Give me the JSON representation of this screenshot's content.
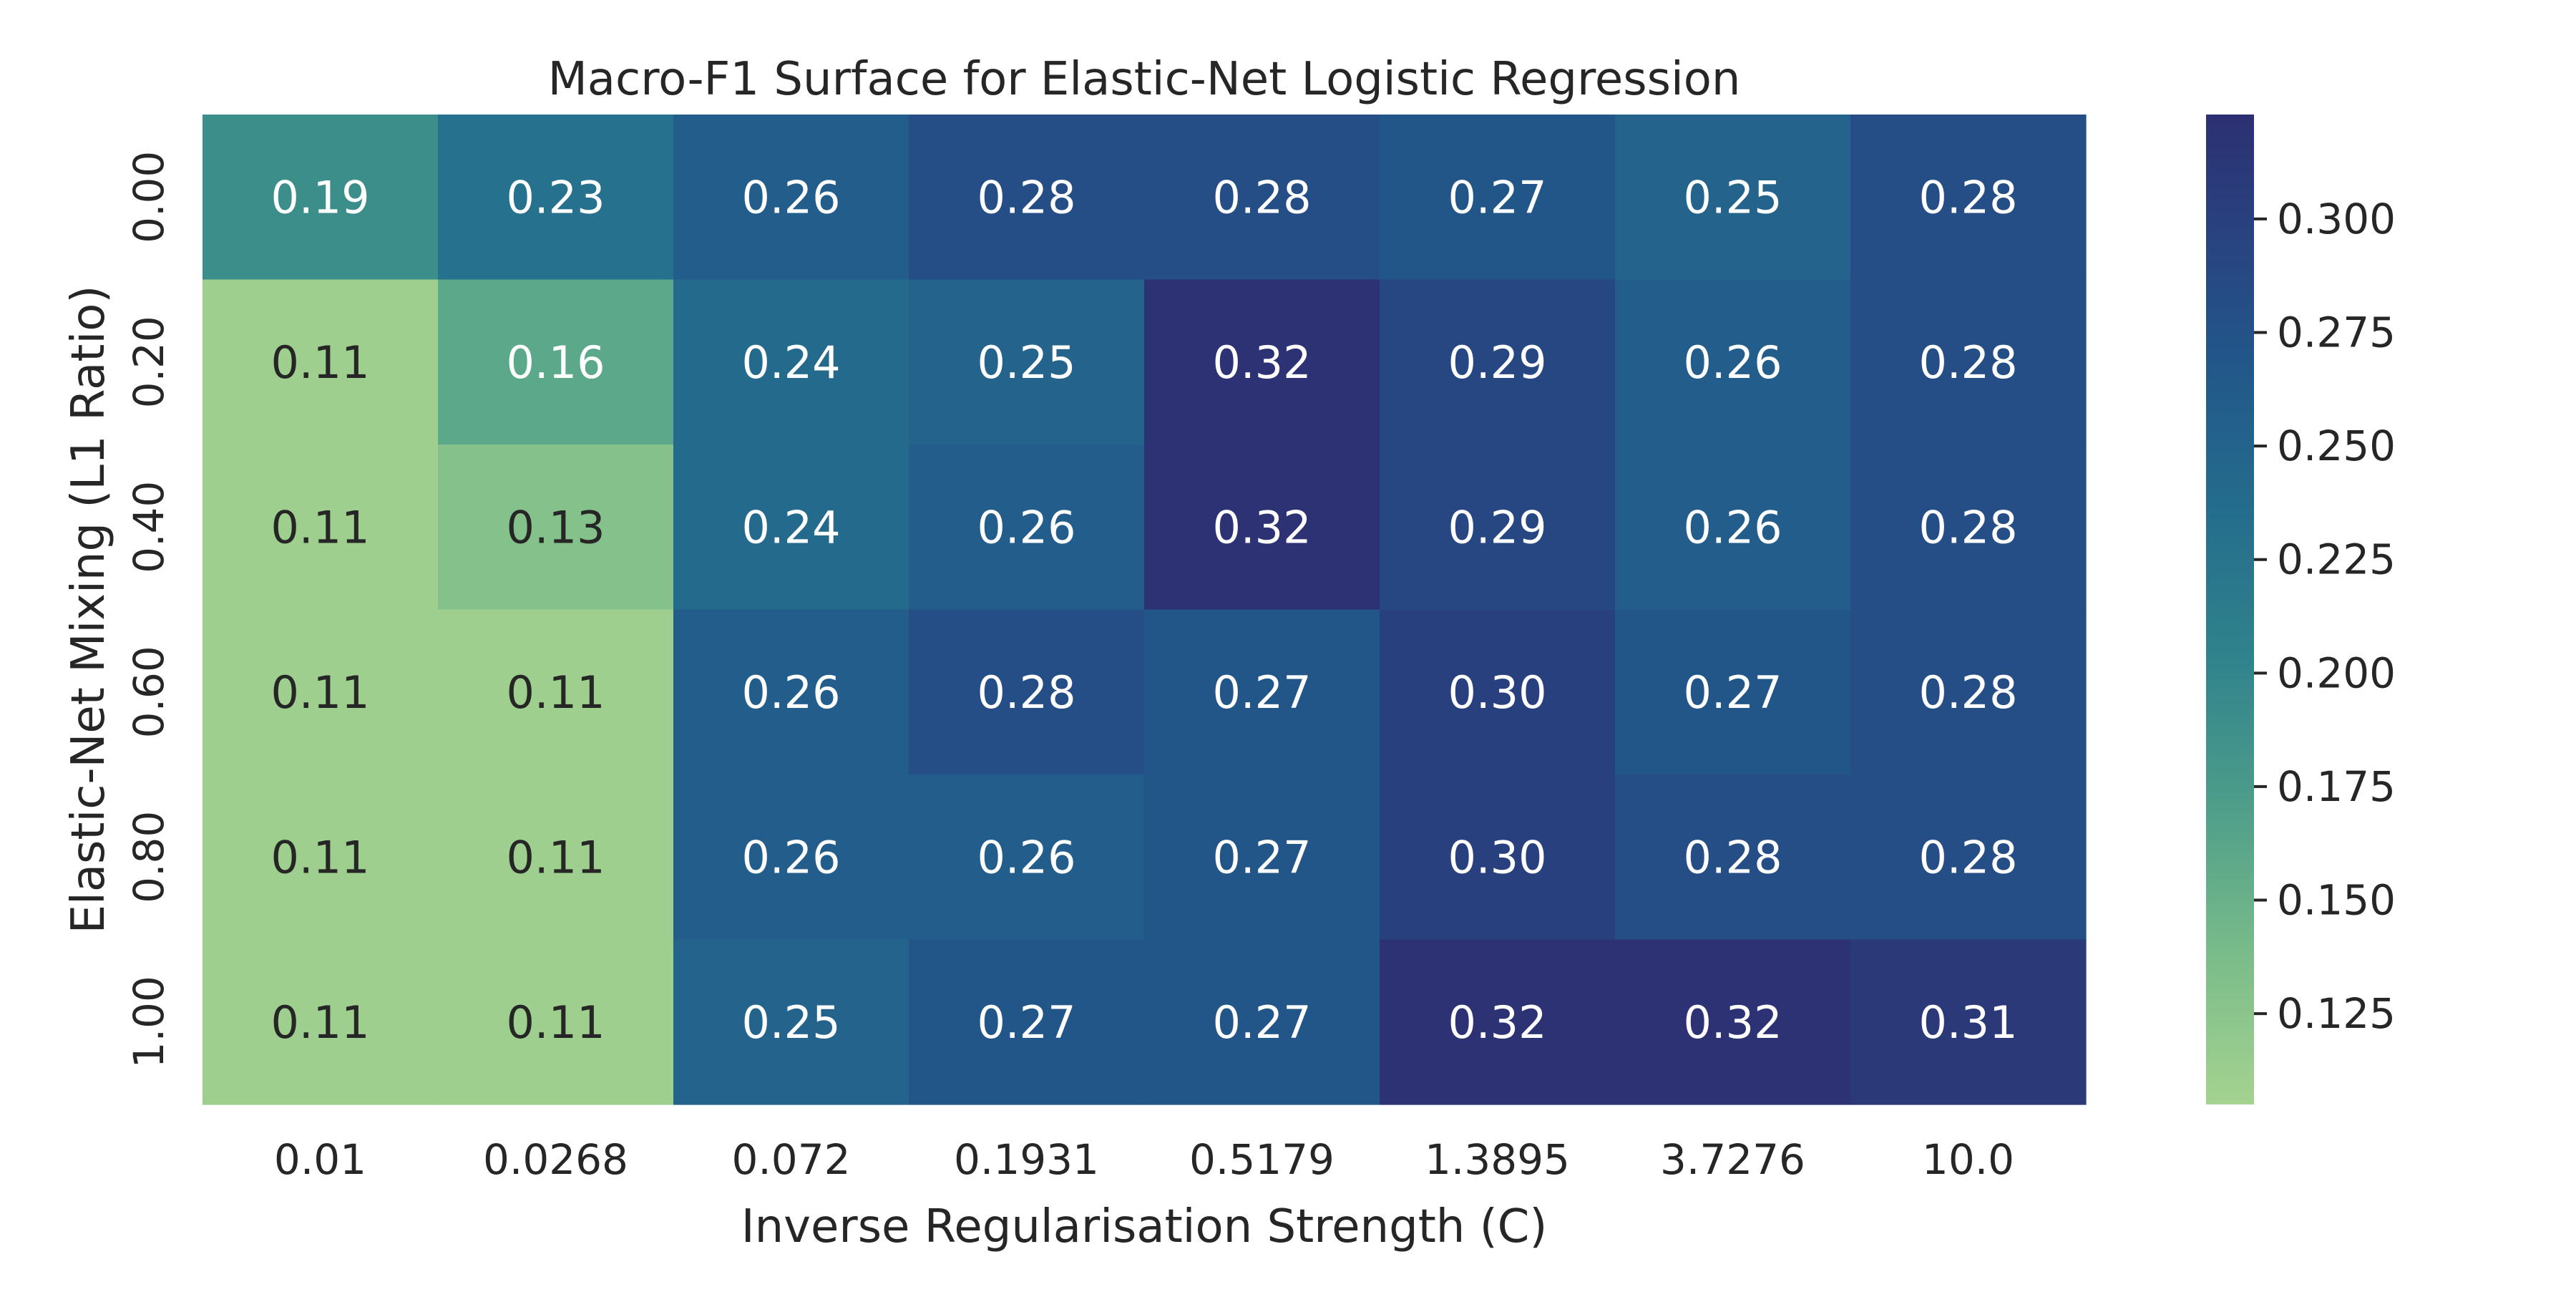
{
  "chart_data": {
    "type": "heatmap",
    "title": "Macro-F1 Surface for Elastic-Net Logistic Regression",
    "xlabel": "Inverse Regularisation Strength (C)",
    "ylabel": "Elastic-Net Mixing (L1 Ratio)",
    "x_categories": [
      "0.01",
      "0.0268",
      "0.072",
      "0.1931",
      "0.5179",
      "1.3895",
      "3.7276",
      "10.0"
    ],
    "y_categories": [
      "0.00",
      "0.20",
      "0.40",
      "0.60",
      "0.80",
      "1.00"
    ],
    "values": [
      [
        0.19,
        0.23,
        0.26,
        0.28,
        0.28,
        0.27,
        0.25,
        0.28
      ],
      [
        0.11,
        0.16,
        0.24,
        0.25,
        0.32,
        0.29,
        0.26,
        0.28
      ],
      [
        0.11,
        0.13,
        0.24,
        0.26,
        0.32,
        0.29,
        0.26,
        0.28
      ],
      [
        0.11,
        0.11,
        0.26,
        0.28,
        0.27,
        0.3,
        0.27,
        0.28
      ],
      [
        0.11,
        0.11,
        0.26,
        0.26,
        0.27,
        0.3,
        0.28,
        0.28
      ],
      [
        0.11,
        0.11,
        0.25,
        0.27,
        0.27,
        0.32,
        0.32,
        0.31
      ]
    ],
    "colorbar": {
      "range": [
        0.105,
        0.323
      ],
      "ticks": [
        "0.125",
        "0.150",
        "0.175",
        "0.200",
        "0.225",
        "0.250",
        "0.275",
        "0.300"
      ],
      "colormap": "crest",
      "low_color": "#a5d390",
      "high_color": "#2c3072"
    },
    "grid": false
  }
}
